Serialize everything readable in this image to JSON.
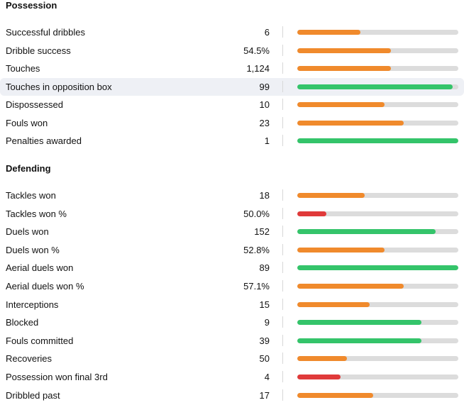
{
  "colors": {
    "orange": "#f08a2c",
    "green": "#34c46a",
    "red": "#e03a3a",
    "track": "#dcdcdc"
  },
  "possession": {
    "title": "Possession",
    "rows": [
      {
        "label": "Successful dribbles",
        "value": "6",
        "pct": 0.39,
        "color": "orange"
      },
      {
        "label": "Dribble success",
        "value": "54.5%",
        "pct": 0.58,
        "color": "orange"
      },
      {
        "label": "Touches",
        "value": "1,124",
        "pct": 0.58,
        "color": "orange"
      },
      {
        "label": "Touches in opposition box",
        "value": "99",
        "pct": 0.965,
        "color": "green",
        "highlight": true
      },
      {
        "label": "Dispossessed",
        "value": "10",
        "pct": 0.54,
        "color": "orange"
      },
      {
        "label": "Fouls won",
        "value": "23",
        "pct": 0.66,
        "color": "orange"
      },
      {
        "label": "Penalties awarded",
        "value": "1",
        "pct": 1.0,
        "color": "green"
      }
    ]
  },
  "defending": {
    "title": "Defending",
    "rows": [
      {
        "label": "Tackles won",
        "value": "18",
        "pct": 0.42,
        "color": "orange"
      },
      {
        "label": "Tackles won %",
        "value": "50.0%",
        "pct": 0.18,
        "color": "red"
      },
      {
        "label": "Duels won",
        "value": "152",
        "pct": 0.86,
        "color": "green"
      },
      {
        "label": "Duels won %",
        "value": "52.8%",
        "pct": 0.54,
        "color": "orange"
      },
      {
        "label": "Aerial duels won",
        "value": "89",
        "pct": 1.0,
        "color": "green"
      },
      {
        "label": "Aerial duels won %",
        "value": "57.1%",
        "pct": 0.66,
        "color": "orange"
      },
      {
        "label": "Interceptions",
        "value": "15",
        "pct": 0.45,
        "color": "orange"
      },
      {
        "label": "Blocked",
        "value": "9",
        "pct": 0.77,
        "color": "green"
      },
      {
        "label": "Fouls committed",
        "value": "39",
        "pct": 0.77,
        "color": "green"
      },
      {
        "label": "Recoveries",
        "value": "50",
        "pct": 0.31,
        "color": "orange"
      },
      {
        "label": "Possession won final 3rd",
        "value": "4",
        "pct": 0.27,
        "color": "red"
      },
      {
        "label": "Dribbled past",
        "value": "17",
        "pct": 0.47,
        "color": "orange"
      }
    ]
  }
}
